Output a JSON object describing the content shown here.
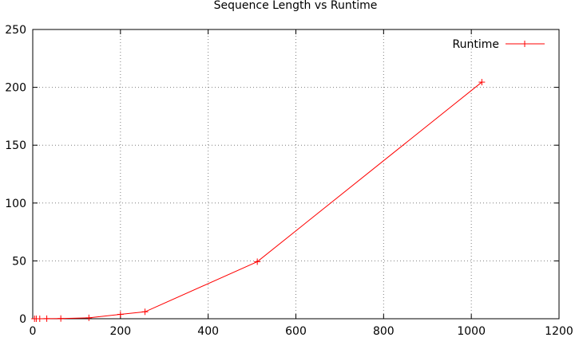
{
  "chart_data": {
    "type": "line",
    "title": "Sequence Length vs Runtime",
    "xlabel": "",
    "ylabel": "",
    "xlim": [
      0,
      1200
    ],
    "ylim": [
      0,
      250
    ],
    "x_ticks": [
      0,
      200,
      400,
      600,
      800,
      1000,
      1200
    ],
    "y_ticks": [
      0,
      50,
      100,
      150,
      200,
      250
    ],
    "grid": true,
    "legend_position": "top-right",
    "series": [
      {
        "name": "Runtime",
        "color": "#ff0000",
        "marker": "plus",
        "x": [
          4,
          8,
          16,
          32,
          64,
          128,
          200,
          256,
          512,
          1024
        ],
        "y": [
          0.0,
          0.0,
          0.0,
          0.1,
          0.2,
          0.8,
          3.8,
          6.0,
          49.3,
          204.5
        ]
      }
    ]
  }
}
